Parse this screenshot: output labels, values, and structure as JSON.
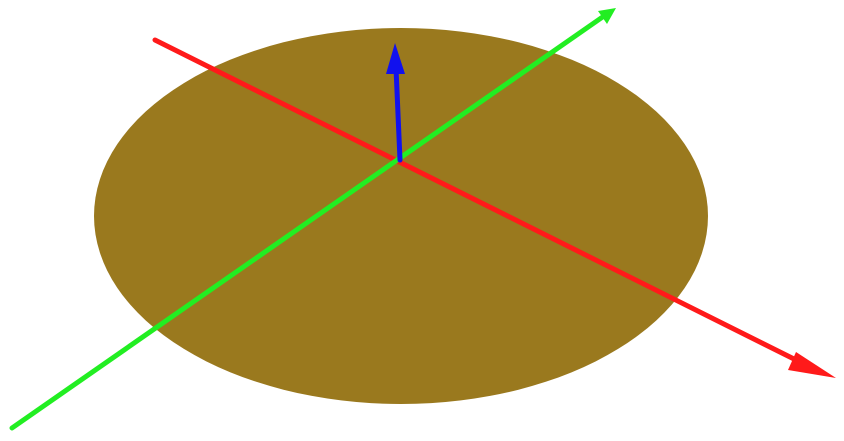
{
  "scene": {
    "background_color": "#ffffff",
    "disk": {
      "shape": "ellipse",
      "color": "#9a791e"
    },
    "axes": [
      {
        "id": "x-axis",
        "color": "#ff1a1a",
        "icon": "arrow-icon"
      },
      {
        "id": "y-axis",
        "color": "#22ee22",
        "icon": "arrow-icon"
      },
      {
        "id": "z-axis",
        "color": "#1111ee",
        "icon": "arrow-icon"
      }
    ]
  }
}
